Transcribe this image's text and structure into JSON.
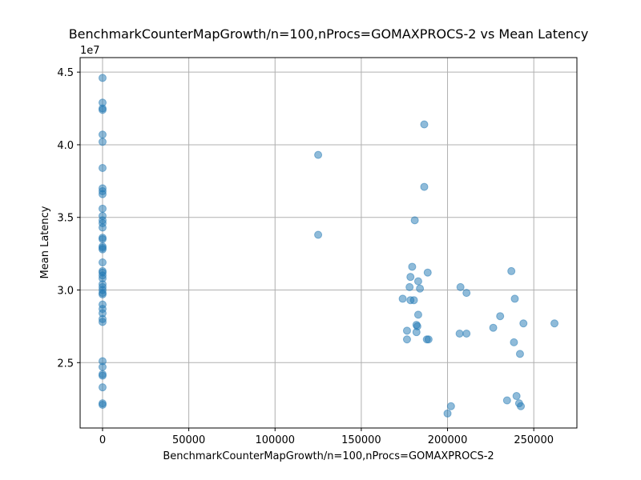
{
  "chart_data": {
    "type": "scatter",
    "title": "BenchmarkCounterMapGrowth/n=100,nProcs=GOMAXPROCS-2 vs Mean Latency",
    "xlabel": "BenchmarkCounterMapGrowth/n=100,nProcs=GOMAXPROCS-2",
    "ylabel": "Mean Latency",
    "y_offset_label": "1e7",
    "xlim": [
      -13000,
      275000
    ],
    "ylim": [
      20500000,
      46000000
    ],
    "x_ticks": [
      0,
      50000,
      100000,
      150000,
      200000,
      250000
    ],
    "x_tick_labels": [
      "0",
      "50000",
      "100000",
      "150000",
      "200000",
      "250000"
    ],
    "y_ticks": [
      25000000,
      30000000,
      35000000,
      40000000,
      45000000
    ],
    "y_tick_labels": [
      "2.5",
      "3.0",
      "3.5",
      "4.0",
      "4.5"
    ],
    "grid": true,
    "point_color": "#1f77b4",
    "points": [
      {
        "x": 0,
        "y": 44600000
      },
      {
        "x": 0,
        "y": 42900000
      },
      {
        "x": 0,
        "y": 42500000
      },
      {
        "x": 0,
        "y": 42400000
      },
      {
        "x": 0,
        "y": 40700000
      },
      {
        "x": 0,
        "y": 40200000
      },
      {
        "x": 0,
        "y": 38400000
      },
      {
        "x": 0,
        "y": 37000000
      },
      {
        "x": 0,
        "y": 36800000
      },
      {
        "x": 0,
        "y": 36600000
      },
      {
        "x": 0,
        "y": 35600000
      },
      {
        "x": 0,
        "y": 35100000
      },
      {
        "x": 0,
        "y": 34800000
      },
      {
        "x": 0,
        "y": 34600000
      },
      {
        "x": 0,
        "y": 34300000
      },
      {
        "x": 0,
        "y": 33600000
      },
      {
        "x": 0,
        "y": 33500000
      },
      {
        "x": 0,
        "y": 33000000
      },
      {
        "x": 0,
        "y": 32900000
      },
      {
        "x": 0,
        "y": 32800000
      },
      {
        "x": 0,
        "y": 31900000
      },
      {
        "x": 0,
        "y": 31300000
      },
      {
        "x": 0,
        "y": 31200000
      },
      {
        "x": 0,
        "y": 31000000
      },
      {
        "x": 0,
        "y": 30800000
      },
      {
        "x": 0,
        "y": 30400000
      },
      {
        "x": 0,
        "y": 30200000
      },
      {
        "x": 0,
        "y": 30000000
      },
      {
        "x": 0,
        "y": 29800000
      },
      {
        "x": 0,
        "y": 29700000
      },
      {
        "x": 0,
        "y": 29000000
      },
      {
        "x": 0,
        "y": 28700000
      },
      {
        "x": 0,
        "y": 28400000
      },
      {
        "x": 0,
        "y": 28000000
      },
      {
        "x": 0,
        "y": 27800000
      },
      {
        "x": 0,
        "y": 25100000
      },
      {
        "x": 0,
        "y": 24700000
      },
      {
        "x": 0,
        "y": 24200000
      },
      {
        "x": 0,
        "y": 24100000
      },
      {
        "x": 0,
        "y": 23300000
      },
      {
        "x": 0,
        "y": 22200000
      },
      {
        "x": 0,
        "y": 22100000
      },
      {
        "x": 125000,
        "y": 39300000
      },
      {
        "x": 125000,
        "y": 33800000
      },
      {
        "x": 186500,
        "y": 41400000
      },
      {
        "x": 186500,
        "y": 37100000
      },
      {
        "x": 181000,
        "y": 34800000
      },
      {
        "x": 179500,
        "y": 31600000
      },
      {
        "x": 188500,
        "y": 31200000
      },
      {
        "x": 178500,
        "y": 30900000
      },
      {
        "x": 183000,
        "y": 30600000
      },
      {
        "x": 178000,
        "y": 30200000
      },
      {
        "x": 184000,
        "y": 30100000
      },
      {
        "x": 174000,
        "y": 29400000
      },
      {
        "x": 178500,
        "y": 29300000
      },
      {
        "x": 180500,
        "y": 29300000
      },
      {
        "x": 183000,
        "y": 28300000
      },
      {
        "x": 182000,
        "y": 27600000
      },
      {
        "x": 182500,
        "y": 27500000
      },
      {
        "x": 176500,
        "y": 27200000
      },
      {
        "x": 182000,
        "y": 27100000
      },
      {
        "x": 176500,
        "y": 26600000
      },
      {
        "x": 188000,
        "y": 26600000
      },
      {
        "x": 189000,
        "y": 26600000
      },
      {
        "x": 207500,
        "y": 30200000
      },
      {
        "x": 211000,
        "y": 29800000
      },
      {
        "x": 207000,
        "y": 27000000
      },
      {
        "x": 211000,
        "y": 27000000
      },
      {
        "x": 202000,
        "y": 22000000
      },
      {
        "x": 200000,
        "y": 21500000
      },
      {
        "x": 237000,
        "y": 31300000
      },
      {
        "x": 239000,
        "y": 29400000
      },
      {
        "x": 230500,
        "y": 28200000
      },
      {
        "x": 226500,
        "y": 27400000
      },
      {
        "x": 244000,
        "y": 27700000
      },
      {
        "x": 262000,
        "y": 27700000
      },
      {
        "x": 238500,
        "y": 26400000
      },
      {
        "x": 242000,
        "y": 25600000
      },
      {
        "x": 240000,
        "y": 22700000
      },
      {
        "x": 234500,
        "y": 22400000
      },
      {
        "x": 241500,
        "y": 22200000
      },
      {
        "x": 242500,
        "y": 22000000
      }
    ]
  }
}
